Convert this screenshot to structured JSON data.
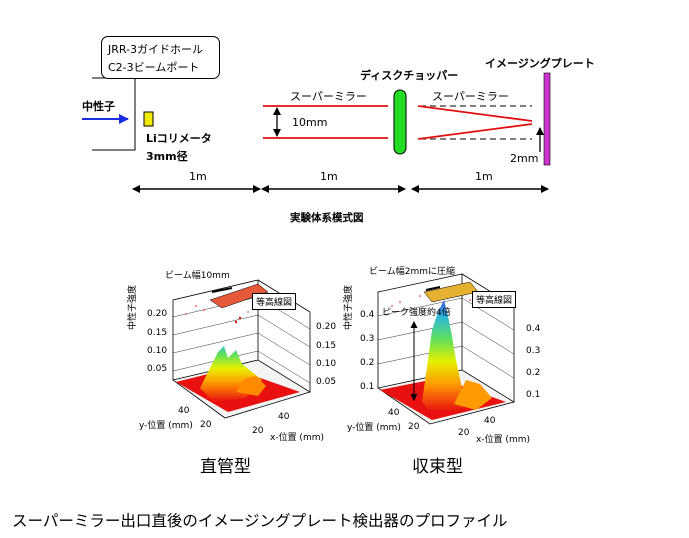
{
  "facility_box": {
    "line1": "JRR-3ガイドホール",
    "line2": "C2-3ビームポート"
  },
  "neutron_label": "中性子",
  "collimator_label": "Liコリメータ",
  "collimator_diameter": "3mm径",
  "mirror_label_1": "スーパーミラー",
  "mirror_label_2": "スーパーミラー",
  "gap_label": "10mm",
  "chopper_label": "ディスクチョッパー",
  "plate_label": "イメージングプレート",
  "focus_label": "2mm",
  "distances": [
    "1m",
    "1m",
    "1m"
  ],
  "schematic_title": "実験体系模式図",
  "plots": [
    {
      "beam_label": "ビーム幅10mm",
      "contour_label": "等高線図",
      "z_axis_label": "中性子強度",
      "z_ticks_left": [
        "0.20",
        "0.15",
        "0.10",
        "0.05"
      ],
      "z_ticks_right": [
        "0.20",
        "0.15",
        "0.10",
        "0.05"
      ],
      "y_axis_label": "y-位置 (mm)",
      "x_axis_label": "x-位置 (mm)",
      "y_ticks": [
        "40",
        "20"
      ],
      "x_ticks": [
        "40",
        "20"
      ],
      "caption": "直管型"
    },
    {
      "beam_label": "ビーム幅2mmに圧縮",
      "contour_label": "等高線図",
      "peak_label": "ピーク強度約4倍",
      "z_axis_label": "中性子強度",
      "z_ticks_left": [
        "0.4",
        "0.3",
        "0.2",
        "0.1"
      ],
      "z_ticks_right": [
        "0.4",
        "0.3",
        "0.2",
        "0.1"
      ],
      "y_axis_label": "y-位置 (mm)",
      "x_axis_label": "x-位置 (mm)",
      "y_ticks": [
        "40",
        "20"
      ],
      "x_ticks": [
        "40",
        "20"
      ],
      "caption": "収束型"
    }
  ],
  "main_caption": "スーパーミラー出口直後のイメージングプレート検出器のプロファイル",
  "colors": {
    "beam_arrow": "#1a2de0",
    "mirror": "#e01010",
    "chopper": "#22dd22",
    "plate": "#cc33cc",
    "collimator": "#f2ea00"
  }
}
